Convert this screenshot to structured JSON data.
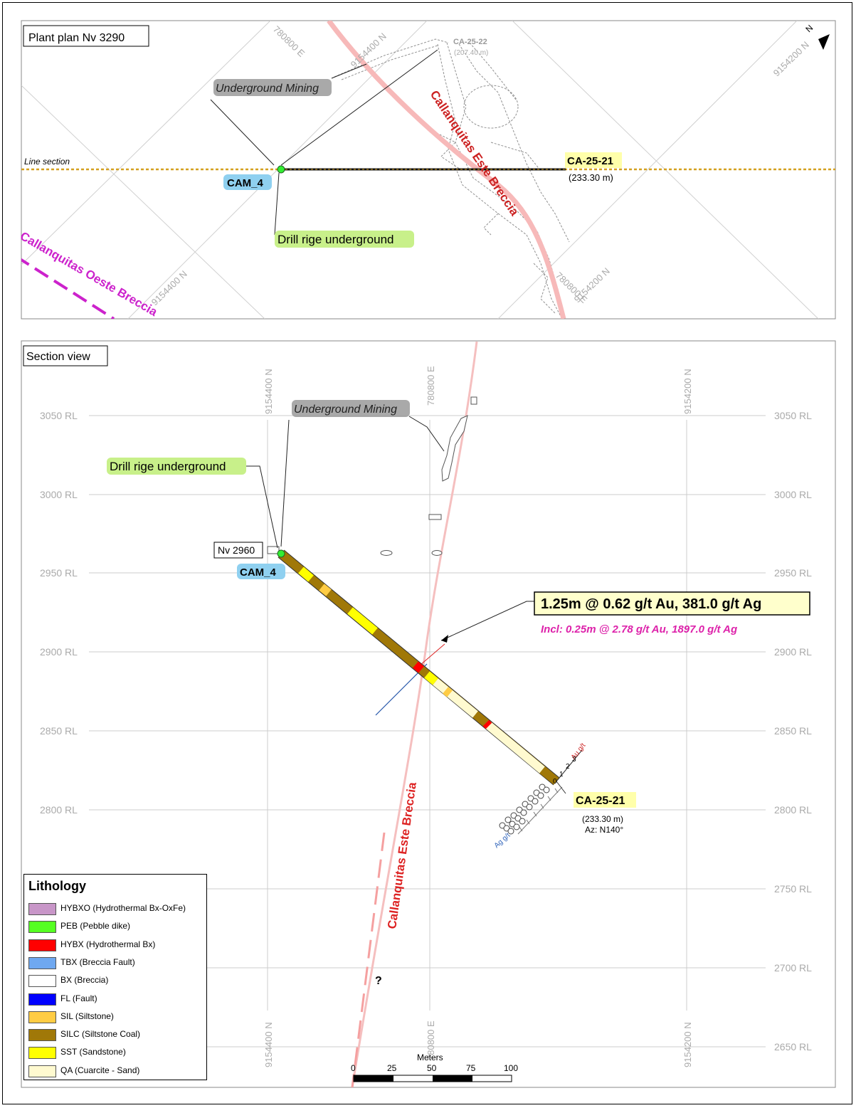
{
  "plan": {
    "title": "Plant plan Nv 3290",
    "coords": {
      "e_top": "780800 E",
      "n_top_mid": "9154400 N",
      "n_top_right": "9154200 N",
      "n_bottom_left": "9154400 N",
      "n_bottom_right": "9154200 N",
      "e_bottom_right": "780800 E"
    },
    "north": "N",
    "hole_ghost": "CA-25-22",
    "hole_ghost_len": "(207.40 m)",
    "underground_mining": "Underground Mining",
    "line_section": "Line section",
    "collar": "CAM_4",
    "hole": "CA-25-21",
    "hole_len": "(233.30 m)",
    "drill_rig": "Drill rige underground",
    "breccia_este": "Callanquitas Este Breccia",
    "breccia_oeste": "Callanquitas Oeste Breccia"
  },
  "section": {
    "title": "Section view",
    "coords": {
      "n_left": "9154400 N",
      "e_mid": "780800 E",
      "n_right": "9154200 N"
    },
    "rl_levels": [
      "3050 RL",
      "3000 RL",
      "2950 RL",
      "2900 RL",
      "2850 RL",
      "2800 RL",
      "2750 RL",
      "2700 RL",
      "2650 RL"
    ],
    "underground_mining": "Underground Mining",
    "drill_rig": "Drill rige underground",
    "level": "Nv 2960",
    "collar": "CAM_4",
    "intercept_main": "1.25m @ 0.62 g/t Au, 381.0 g/t Ag",
    "intercept_incl": "Incl: 0.25m @ 2.78 g/t Au, 1897.0 g/t Ag",
    "hole": "CA-25-21",
    "hole_len": "(233.30 m)",
    "azimuth": "Az: N140°",
    "au_label": "Au g/t",
    "ag_label": "Ag g/t",
    "au_ticks": [
      "0",
      "1",
      "2",
      "3"
    ],
    "breccia_este": "Callanquitas Este Breccia",
    "question": "?"
  },
  "scale": {
    "unit": "Meters",
    "ticks": [
      "0",
      "25",
      "50",
      "75",
      "100"
    ]
  },
  "legend": {
    "title": "Lithology",
    "items": [
      {
        "label": "HYBXO (Hydrothermal Bx-OxFe)",
        "color": "#c896c8"
      },
      {
        "label": "PEB (Pebble dike)",
        "color": "#55ff22"
      },
      {
        "label": "HYBX (Hydrothermal Bx)",
        "color": "#ff0000"
      },
      {
        "label": "TBX (Breccia Fault)",
        "color": "#6fa8f0"
      },
      {
        "label": "BX (Breccia)",
        "color": "#ffffff"
      },
      {
        "label": "FL (Fault)",
        "color": "#0000ff"
      },
      {
        "label": "SIL (Siltstone)",
        "color": "#ffcc44"
      },
      {
        "label": "SILC (Siltstone Coal)",
        "color": "#a07808"
      },
      {
        "label": "SST (Sandstone)",
        "color": "#ffff00"
      },
      {
        "label": "QA (Cuarcite - Sand)",
        "color": "#fffad0"
      }
    ]
  }
}
